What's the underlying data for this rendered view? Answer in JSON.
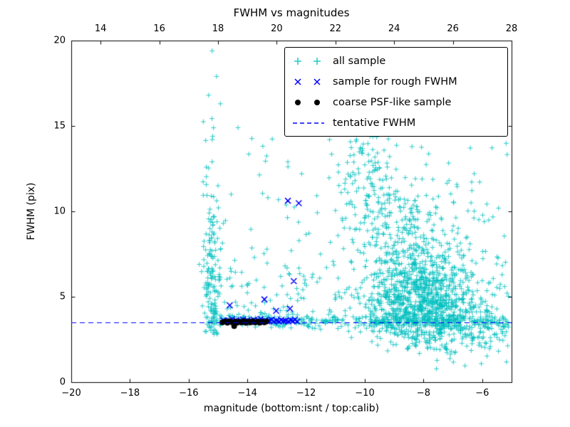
{
  "chart_data": {
    "type": "scatter",
    "title": "FWHM vs magnitudes",
    "xlabel": "magnitude (bottom:isnt / top:calib)",
    "ylabel": "FWHM (pix)",
    "xlim": [
      -20,
      -5
    ],
    "ylim": [
      0,
      20
    ],
    "grid": false,
    "legend_position": "upper right",
    "xticks": {
      "values": [
        -20,
        -18,
        -16,
        -14,
        -12,
        -10,
        -8,
        -6
      ],
      "labels": [
        "−20",
        "−18",
        "−16",
        "−14",
        "−12",
        "−10",
        "−8",
        "−6"
      ]
    },
    "top_axis": {
      "offset": 33,
      "ticks": [
        14,
        16,
        18,
        20,
        22,
        24,
        26,
        28
      ],
      "labels": [
        "14",
        "16",
        "18",
        "20",
        "22",
        "24",
        "26",
        "28"
      ]
    },
    "yticks": {
      "values": [
        0,
        5,
        10,
        15,
        20
      ],
      "labels": [
        "0",
        "5",
        "10",
        "15",
        "20"
      ]
    },
    "tentative_fwhm": 3.5,
    "series": [
      {
        "name": "all sample",
        "marker": "plus",
        "color": "#00bfbf",
        "clusters": [
          {
            "n": 130,
            "x": {
              "g": [
                -15.22,
                0.12
              ]
            },
            "y": {
              "h": [
                2.8,
                4.6
              ]
            }
          },
          {
            "n": 45,
            "x": {
              "g": [
                -15.1,
                0.25
              ]
            },
            "y": {
              "h": [
                3.0,
                3.2
              ]
            }
          },
          {
            "n": 70,
            "x": {
              "u": [
                -14.7,
                -12.0
              ]
            },
            "y": {
              "h": [
                3.3,
                2.2
              ]
            }
          },
          {
            "n": 14,
            "x": {
              "u": [
                -13.9,
                -12.0
              ]
            },
            "y": {
              "u": [
                8.0,
                15.0
              ]
            }
          },
          {
            "n": 330,
            "x": {
              "u": [
                -15.0,
                -5.1
              ]
            },
            "y": {
              "g": [
                3.55,
                0.2
              ]
            }
          },
          {
            "n": 900,
            "x": {
              "g": [
                -8.1,
                0.95
              ]
            },
            "y": {
              "g": [
                4.6,
                1.3
              ]
            }
          },
          {
            "n": 340,
            "x": {
              "g": [
                -8.6,
                1.05
              ]
            },
            "y": {
              "g": [
                8.0,
                2.1
              ]
            }
          },
          {
            "n": 120,
            "x": {
              "g": [
                -9.6,
                0.75
              ]
            },
            "y": {
              "g": [
                11.6,
                1.7
              ]
            }
          },
          {
            "n": 110,
            "x": {
              "u": [
                -7.6,
                -5.1
              ]
            },
            "y": {
              "g": [
                2.7,
                0.8
              ]
            }
          },
          {
            "n": 45,
            "x": {
              "u": [
                -6.9,
                -5.1
              ]
            },
            "y": {
              "u": [
                4.0,
                8.2
              ]
            }
          },
          {
            "n": 14,
            "x": {
              "u": [
                -7.2,
                -5.1
              ]
            },
            "y": {
              "u": [
                9.0,
                14.0
              ]
            }
          },
          {
            "n": 30,
            "x": {
              "u": [
                -12.3,
                -10.3
              ]
            },
            "y": {
              "h": [
                3.8,
                2.2
              ]
            }
          },
          {
            "n": 25,
            "x": {
              "g": [
                -10.4,
                0.35
              ]
            },
            "y": {
              "g": [
                12.5,
                1.3
              ]
            }
          }
        ],
        "points": [
          [
            -15.2,
            19.4
          ],
          [
            -15.32,
            16.8
          ],
          [
            -15.05,
            17.9
          ],
          [
            -14.92,
            16.3
          ],
          [
            -15.5,
            15.25
          ],
          [
            -15.18,
            14.4
          ],
          [
            -15.42,
            14.15
          ],
          [
            -14.32,
            14.9
          ],
          [
            -13.95,
            13.35
          ],
          [
            -15.2,
            12.9
          ],
          [
            -15.0,
            11.5
          ],
          [
            -14.55,
            11.0
          ],
          [
            -13.3,
            10.8
          ],
          [
            -12.62,
            12.9
          ],
          [
            -12.15,
            12.2
          ],
          [
            -12.4,
            10.25
          ],
          [
            -15.3,
            9.9
          ],
          [
            -14.82,
            9.3
          ],
          [
            -11.2,
            14.2
          ],
          [
            -10.85,
            15.3
          ],
          [
            -10.45,
            15.6
          ],
          [
            -10.1,
            15.1
          ]
        ]
      },
      {
        "name": "sample for rough FWHM",
        "marker": "x",
        "color": "#0000ff",
        "points": [
          [
            -14.82,
            3.62
          ],
          [
            -14.72,
            3.55
          ],
          [
            -14.62,
            3.6
          ],
          [
            -14.6,
            4.5
          ],
          [
            -14.52,
            3.7
          ],
          [
            -14.45,
            3.56
          ],
          [
            -14.38,
            3.62
          ],
          [
            -14.3,
            3.52
          ],
          [
            -14.22,
            3.6
          ],
          [
            -14.15,
            3.68
          ],
          [
            -14.08,
            3.55
          ],
          [
            -14.0,
            3.62
          ],
          [
            -13.92,
            3.52
          ],
          [
            -13.85,
            3.58
          ],
          [
            -13.78,
            3.65
          ],
          [
            -13.7,
            3.55
          ],
          [
            -13.62,
            3.6
          ],
          [
            -13.55,
            3.7
          ],
          [
            -13.48,
            3.55
          ],
          [
            -13.42,
            4.85
          ],
          [
            -13.4,
            3.62
          ],
          [
            -13.32,
            3.55
          ],
          [
            -13.25,
            3.6
          ],
          [
            -13.18,
            3.66
          ],
          [
            -13.1,
            3.55
          ],
          [
            -13.02,
            4.18
          ],
          [
            -13.0,
            3.6
          ],
          [
            -12.92,
            3.55
          ],
          [
            -12.85,
            3.64
          ],
          [
            -12.78,
            3.58
          ],
          [
            -12.7,
            3.6
          ],
          [
            -12.62,
            10.62
          ],
          [
            -12.6,
            3.55
          ],
          [
            -12.52,
            3.62
          ],
          [
            -12.45,
            3.58
          ],
          [
            -12.42,
            5.92
          ],
          [
            -12.38,
            3.66
          ],
          [
            -12.3,
            3.55
          ],
          [
            -12.25,
            10.48
          ],
          [
            -12.55,
            4.3
          ]
        ]
      },
      {
        "name": "coarse PSF-like sample",
        "marker": "dot",
        "color": "#000000",
        "points": [
          [
            -14.85,
            3.5
          ],
          [
            -14.76,
            3.55
          ],
          [
            -14.68,
            3.48
          ],
          [
            -14.6,
            3.56
          ],
          [
            -14.52,
            3.5
          ],
          [
            -14.45,
            3.28
          ],
          [
            -14.42,
            3.55
          ],
          [
            -14.35,
            3.48
          ],
          [
            -14.28,
            3.54
          ],
          [
            -14.2,
            3.5
          ],
          [
            -14.12,
            3.56
          ],
          [
            -14.05,
            3.48
          ],
          [
            -13.98,
            3.54
          ],
          [
            -13.9,
            3.5
          ],
          [
            -13.82,
            3.56
          ],
          [
            -13.74,
            3.5
          ],
          [
            -13.66,
            3.54
          ],
          [
            -13.58,
            3.48
          ],
          [
            -13.5,
            3.54
          ],
          [
            -13.42,
            3.5
          ],
          [
            -13.35,
            3.55
          ]
        ]
      },
      {
        "name": "tentative FWHM",
        "marker": "dashed-line",
        "color": "#0000ff",
        "y": 3.5
      }
    ]
  }
}
